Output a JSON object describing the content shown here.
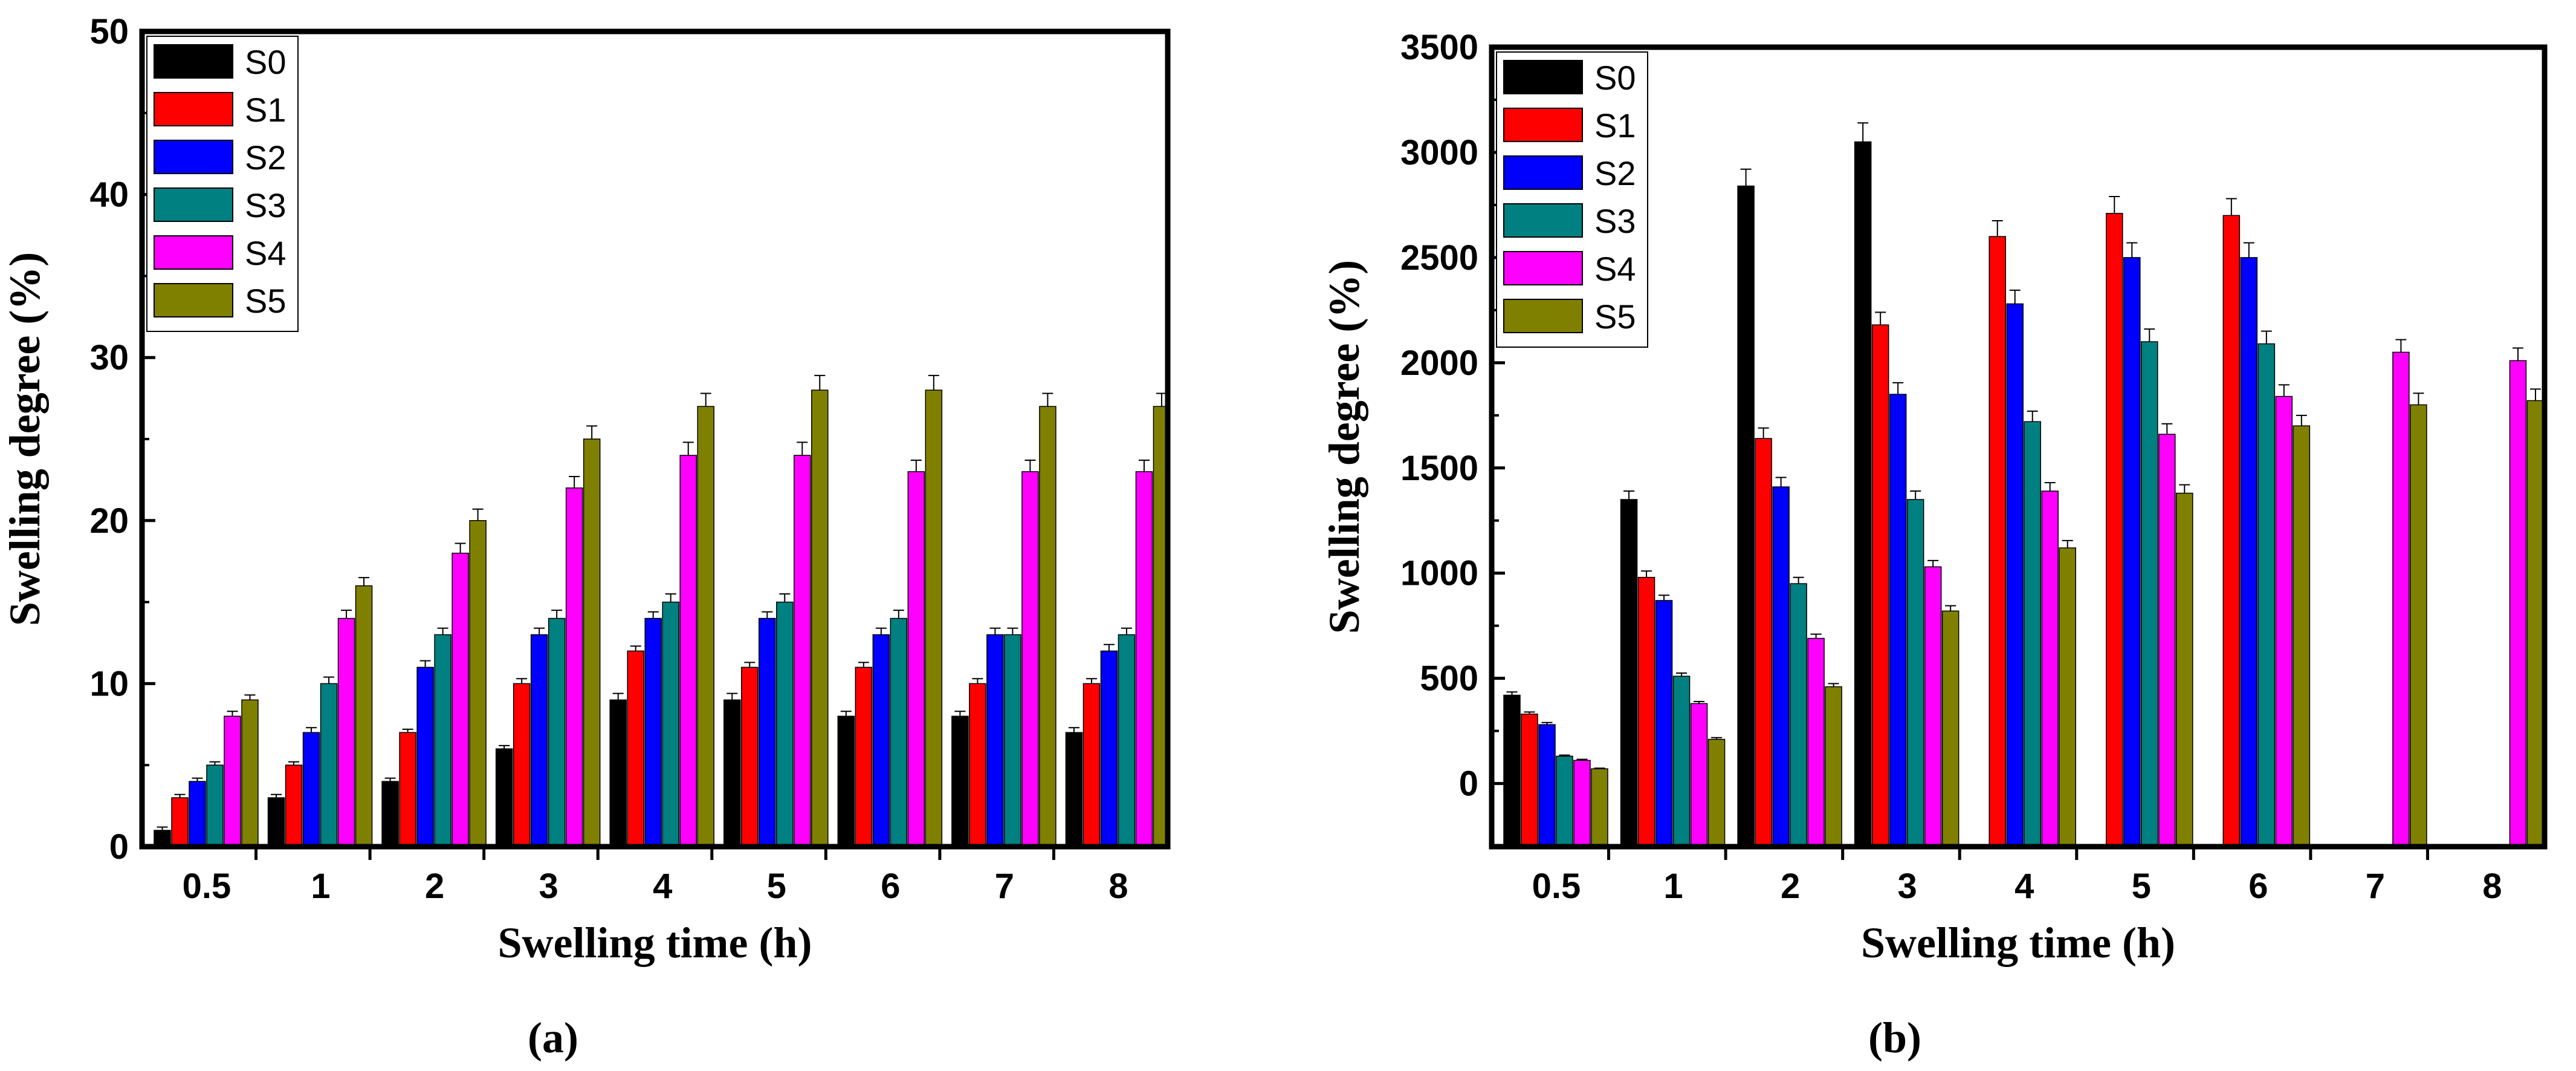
{
  "chart_data": [
    {
      "type": "bar",
      "panel_label": "(a)",
      "categories": [
        "0.5",
        "1",
        "2",
        "3",
        "4",
        "5",
        "6",
        "7",
        "8"
      ],
      "xlabel": "Swelling time (h)",
      "ylabel": "Swelling degree (%)",
      "ylim": [
        0,
        50
      ],
      "yticks": [
        "0",
        "10",
        "20",
        "30",
        "40",
        "50"
      ],
      "ytick_values": [
        0,
        10,
        20,
        30,
        40,
        50
      ],
      "legend_position": "top-left",
      "series": [
        {
          "name": "S0",
          "color": "#000000",
          "values": [
            1,
            3,
            4,
            6,
            9,
            9,
            8,
            8,
            7
          ],
          "errors": [
            0.2,
            0.2,
            0.2,
            0.2,
            0.4,
            0.4,
            0.3,
            0.3,
            0.3
          ]
        },
        {
          "name": "S1",
          "color": "#ff0000",
          "values": [
            3,
            5,
            7,
            10,
            12,
            11,
            11,
            10,
            10
          ],
          "errors": [
            0.2,
            0.2,
            0.2,
            0.3,
            0.3,
            0.3,
            0.3,
            0.3,
            0.3
          ]
        },
        {
          "name": "S2",
          "color": "#0000ff",
          "values": [
            4,
            7,
            11,
            13,
            14,
            14,
            13,
            13,
            12
          ],
          "errors": [
            0.2,
            0.3,
            0.4,
            0.4,
            0.4,
            0.4,
            0.4,
            0.4,
            0.4
          ]
        },
        {
          "name": "S3",
          "color": "#008080",
          "values": [
            5,
            10,
            13,
            14,
            15,
            15,
            14,
            13,
            13
          ],
          "errors": [
            0.2,
            0.4,
            0.4,
            0.5,
            0.5,
            0.5,
            0.5,
            0.4,
            0.4
          ]
        },
        {
          "name": "S4",
          "color": "#ff00ff",
          "values": [
            8,
            14,
            18,
            22,
            24,
            24,
            23,
            23,
            23
          ],
          "errors": [
            0.3,
            0.5,
            0.6,
            0.7,
            0.8,
            0.8,
            0.7,
            0.7,
            0.7
          ]
        },
        {
          "name": "S5",
          "color": "#808000",
          "values": [
            9,
            16,
            20,
            25,
            27,
            28,
            28,
            27,
            27
          ],
          "errors": [
            0.3,
            0.5,
            0.7,
            0.8,
            0.8,
            0.9,
            0.9,
            0.8,
            0.8
          ]
        }
      ]
    },
    {
      "type": "bar",
      "panel_label": "(b)",
      "categories": [
        "0.5",
        "1",
        "2",
        "3",
        "4",
        "5",
        "6",
        "7",
        "8"
      ],
      "xlabel": "Swelling time (h)",
      "ylabel": "Swelling degree (%)",
      "ylim": [
        -300,
        3500
      ],
      "yticks": [
        "0",
        "500",
        "1000",
        "1500",
        "2000",
        "2500",
        "3000",
        "3500"
      ],
      "ytick_values": [
        0,
        500,
        1000,
        1500,
        2000,
        2500,
        3000,
        3500
      ],
      "legend_position": "top-left",
      "series": [
        {
          "name": "S0",
          "color": "#000000",
          "values": [
            420,
            1350,
            2840,
            3050,
            null,
            null,
            null,
            null,
            null
          ],
          "errors": [
            15,
            40,
            80,
            90,
            0,
            0,
            0,
            0,
            0
          ]
        },
        {
          "name": "S1",
          "color": "#ff0000",
          "values": [
            330,
            980,
            1640,
            2180,
            2600,
            2710,
            2700,
            null,
            null
          ],
          "errors": [
            10,
            30,
            50,
            60,
            75,
            80,
            80,
            0,
            0
          ]
        },
        {
          "name": "S2",
          "color": "#0000ff",
          "values": [
            280,
            870,
            1410,
            1850,
            2280,
            2500,
            2500,
            null,
            null
          ],
          "errors": [
            10,
            25,
            45,
            55,
            65,
            70,
            70,
            0,
            0
          ]
        },
        {
          "name": "S3",
          "color": "#008080",
          "values": [
            130,
            510,
            950,
            1350,
            1720,
            2100,
            2090,
            null,
            null
          ],
          "errors": [
            5,
            15,
            30,
            40,
            50,
            60,
            60,
            0,
            0
          ]
        },
        {
          "name": "S4",
          "color": "#ff00ff",
          "values": [
            110,
            380,
            690,
            1030,
            1390,
            1660,
            1840,
            2050,
            2010
          ],
          "errors": [
            5,
            10,
            20,
            30,
            40,
            50,
            55,
            60,
            60
          ]
        },
        {
          "name": "S5",
          "color": "#808000",
          "values": [
            70,
            210,
            460,
            820,
            1120,
            1380,
            1700,
            1800,
            1820
          ],
          "errors": [
            3,
            8,
            15,
            25,
            35,
            40,
            50,
            55,
            55
          ]
        }
      ]
    }
  ]
}
